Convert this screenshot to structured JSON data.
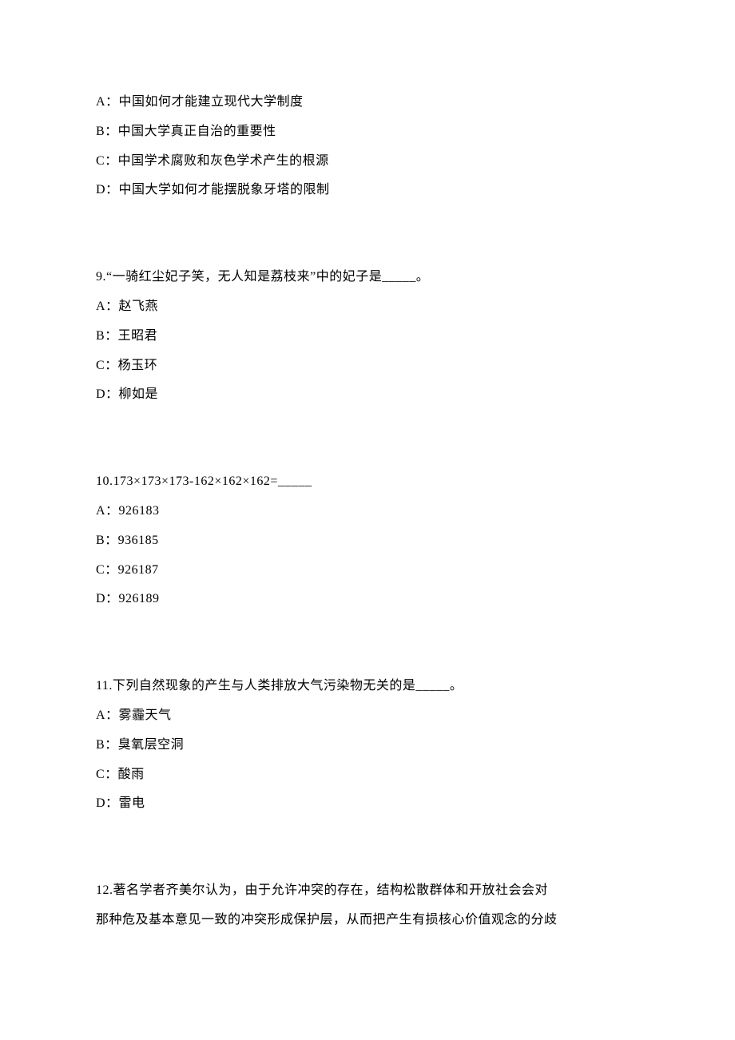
{
  "q8": {
    "a": "A：中国如何才能建立现代大学制度",
    "b": "B：中国大学真正自治的重要性",
    "c": "C：中国学术腐败和灰色学术产生的根源",
    "d": "D：中国大学如何才能摆脱象牙塔的限制"
  },
  "q9": {
    "stem": "9.“一骑红尘妃子笑，无人知是荔枝来”中的妃子是_____。",
    "a": "A：赵飞燕",
    "b": "B：王昭君",
    "c": "C：杨玉环",
    "d": "D：柳如是"
  },
  "q10": {
    "stem": "10.173×173×173-162×162×162=_____",
    "a": "A：926183",
    "b": "B：936185",
    "c": "C：926187",
    "d": "D：926189"
  },
  "q11": {
    "stem": "11.下列自然现象的产生与人类排放大气污染物无关的是_____。",
    "a": "A：雾霾天气",
    "b": "B：臭氧层空洞",
    "c": "C：酸雨",
    "d": "D：雷电"
  },
  "q12": {
    "line1": "12.著名学者齐美尔认为，由于允许冲突的存在，结构松散群体和开放社会会对",
    "line2": "那种危及基本意见一致的冲突形成保护层，从而把产生有损核心价值观念的分歧"
  }
}
